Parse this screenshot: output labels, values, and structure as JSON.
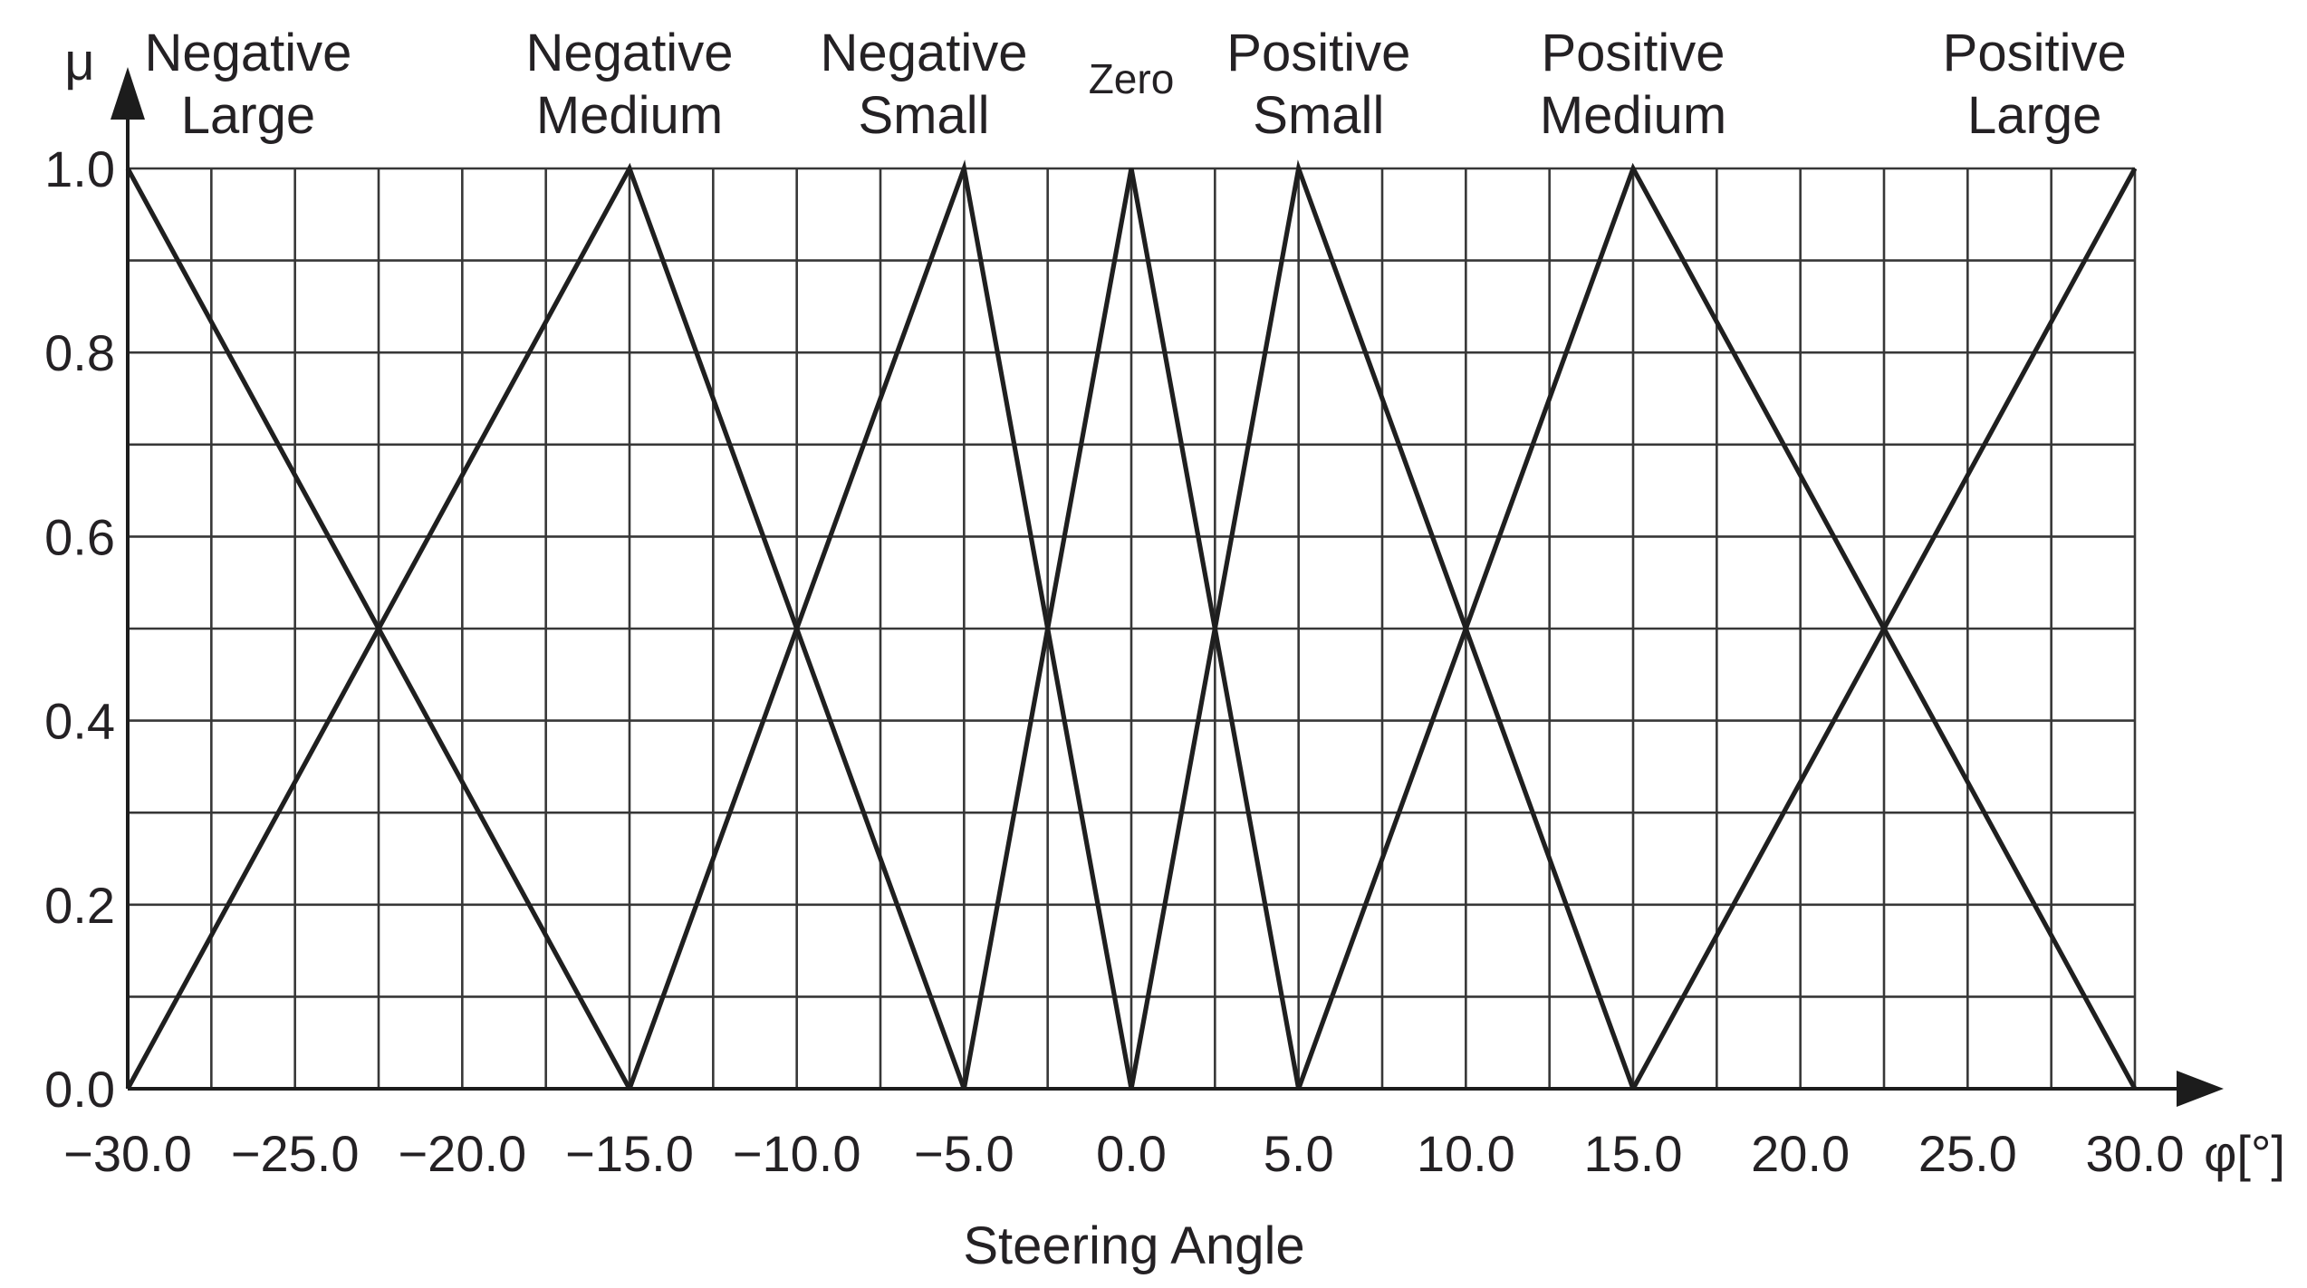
{
  "chart_data": {
    "type": "line",
    "title": "",
    "xlabel": "Steering Angle",
    "x_axis_symbol": "φ[°]",
    "ylabel": "μ",
    "xlim": [
      -30,
      30
    ],
    "ylim": [
      0,
      1
    ],
    "grid": true,
    "x_grid_step": 2.5,
    "y_grid_step": 0.1,
    "x_tick_values": [
      -30,
      -25,
      -20,
      -15,
      -10,
      -5,
      0,
      5,
      10,
      15,
      20,
      25,
      30
    ],
    "x_tick_labels": [
      "−30.0",
      "−25.0",
      "−20.0",
      "−15.0",
      "−10.0",
      "−5.0",
      "0.0",
      "5.0",
      "10.0",
      "15.0",
      "20.0",
      "25.0",
      "30.0"
    ],
    "y_tick_values": [
      1.0,
      0.8,
      0.6,
      0.4,
      0.2,
      0.0
    ],
    "y_tick_labels": [
      "1.0",
      "0.8",
      "0.6",
      "0.4",
      "0.2",
      "0.0"
    ],
    "legend_position": "labels-above-peaks",
    "series": [
      {
        "name": "Negative Large",
        "label_lines": [
          "Negative",
          "Large"
        ],
        "label_x": -26.4,
        "points": [
          [
            -30,
            1
          ],
          [
            -15,
            0
          ]
        ]
      },
      {
        "name": "Negative Medium",
        "label_lines": [
          "Negative",
          "Medium"
        ],
        "label_x": -15,
        "points": [
          [
            -30,
            0
          ],
          [
            -15,
            1
          ],
          [
            -5,
            0
          ]
        ]
      },
      {
        "name": "Negative Small",
        "label_lines": [
          "Negative",
          "Small"
        ],
        "label_x": -6.2,
        "points": [
          [
            -15,
            0
          ],
          [
            -5,
            1
          ],
          [
            0,
            0
          ]
        ]
      },
      {
        "name": "Zero",
        "label_lines": [
          "Zero"
        ],
        "label_x": 0,
        "points": [
          [
            -5,
            0
          ],
          [
            0,
            1
          ],
          [
            5,
            0
          ]
        ]
      },
      {
        "name": "Positive Small",
        "label_lines": [
          "Positive",
          "Small"
        ],
        "label_x": 5.6,
        "points": [
          [
            0,
            0
          ],
          [
            5,
            1
          ],
          [
            15,
            0
          ]
        ]
      },
      {
        "name": "Positive Medium",
        "label_lines": [
          "Positive",
          "Medium"
        ],
        "label_x": 15,
        "points": [
          [
            5,
            0
          ],
          [
            15,
            1
          ],
          [
            30,
            0
          ]
        ]
      },
      {
        "name": "Positive Large",
        "label_lines": [
          "Positive",
          "Large"
        ],
        "label_x": 27,
        "points": [
          [
            15,
            0
          ],
          [
            30,
            1
          ]
        ]
      }
    ],
    "crossing_level_between_adjacent_sets": 0.5,
    "colors": {
      "curve": "#1f1f1f",
      "grid": "#373737",
      "axis": "#1c1c1c",
      "text": "#242124",
      "background": "#ffffff"
    }
  }
}
